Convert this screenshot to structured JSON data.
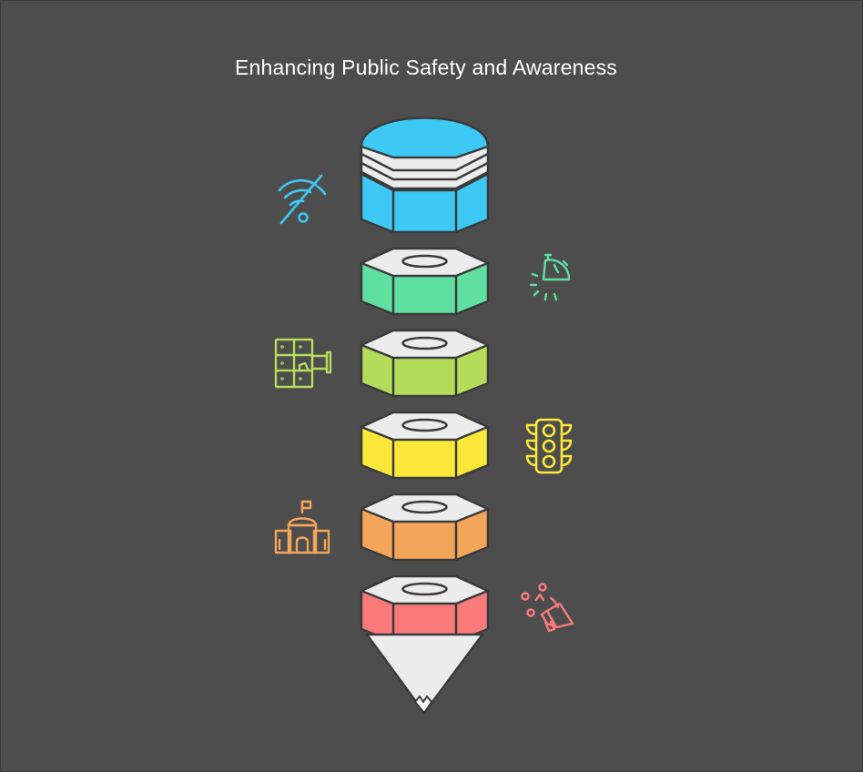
{
  "title": "Enhancing Public Safety and Awareness",
  "colors": {
    "background": "#4d4d4d",
    "outline": "#3b3b3b",
    "cap": "#ececec",
    "tip": "#ececec"
  },
  "segments": [
    {
      "id": "top",
      "color": "#3ec8f5",
      "icon": "no-signal-icon",
      "icon_side": "left"
    },
    {
      "id": "green",
      "color": "#5fe0a0",
      "icon": "stopwatch-alert-icon",
      "icon_side": "right"
    },
    {
      "id": "lime",
      "color": "#b2dc5a",
      "icon": "surveillance-camera-lockers-icon",
      "icon_side": "left"
    },
    {
      "id": "yellow",
      "color": "#fde83a",
      "icon": "traffic-light-icon",
      "icon_side": "right"
    },
    {
      "id": "orange",
      "color": "#f5a55a",
      "icon": "government-building-icon",
      "icon_side": "left"
    },
    {
      "id": "red",
      "color": "#fa7a7a",
      "icon": "megaphone-announcement-icon",
      "icon_side": "right"
    }
  ]
}
